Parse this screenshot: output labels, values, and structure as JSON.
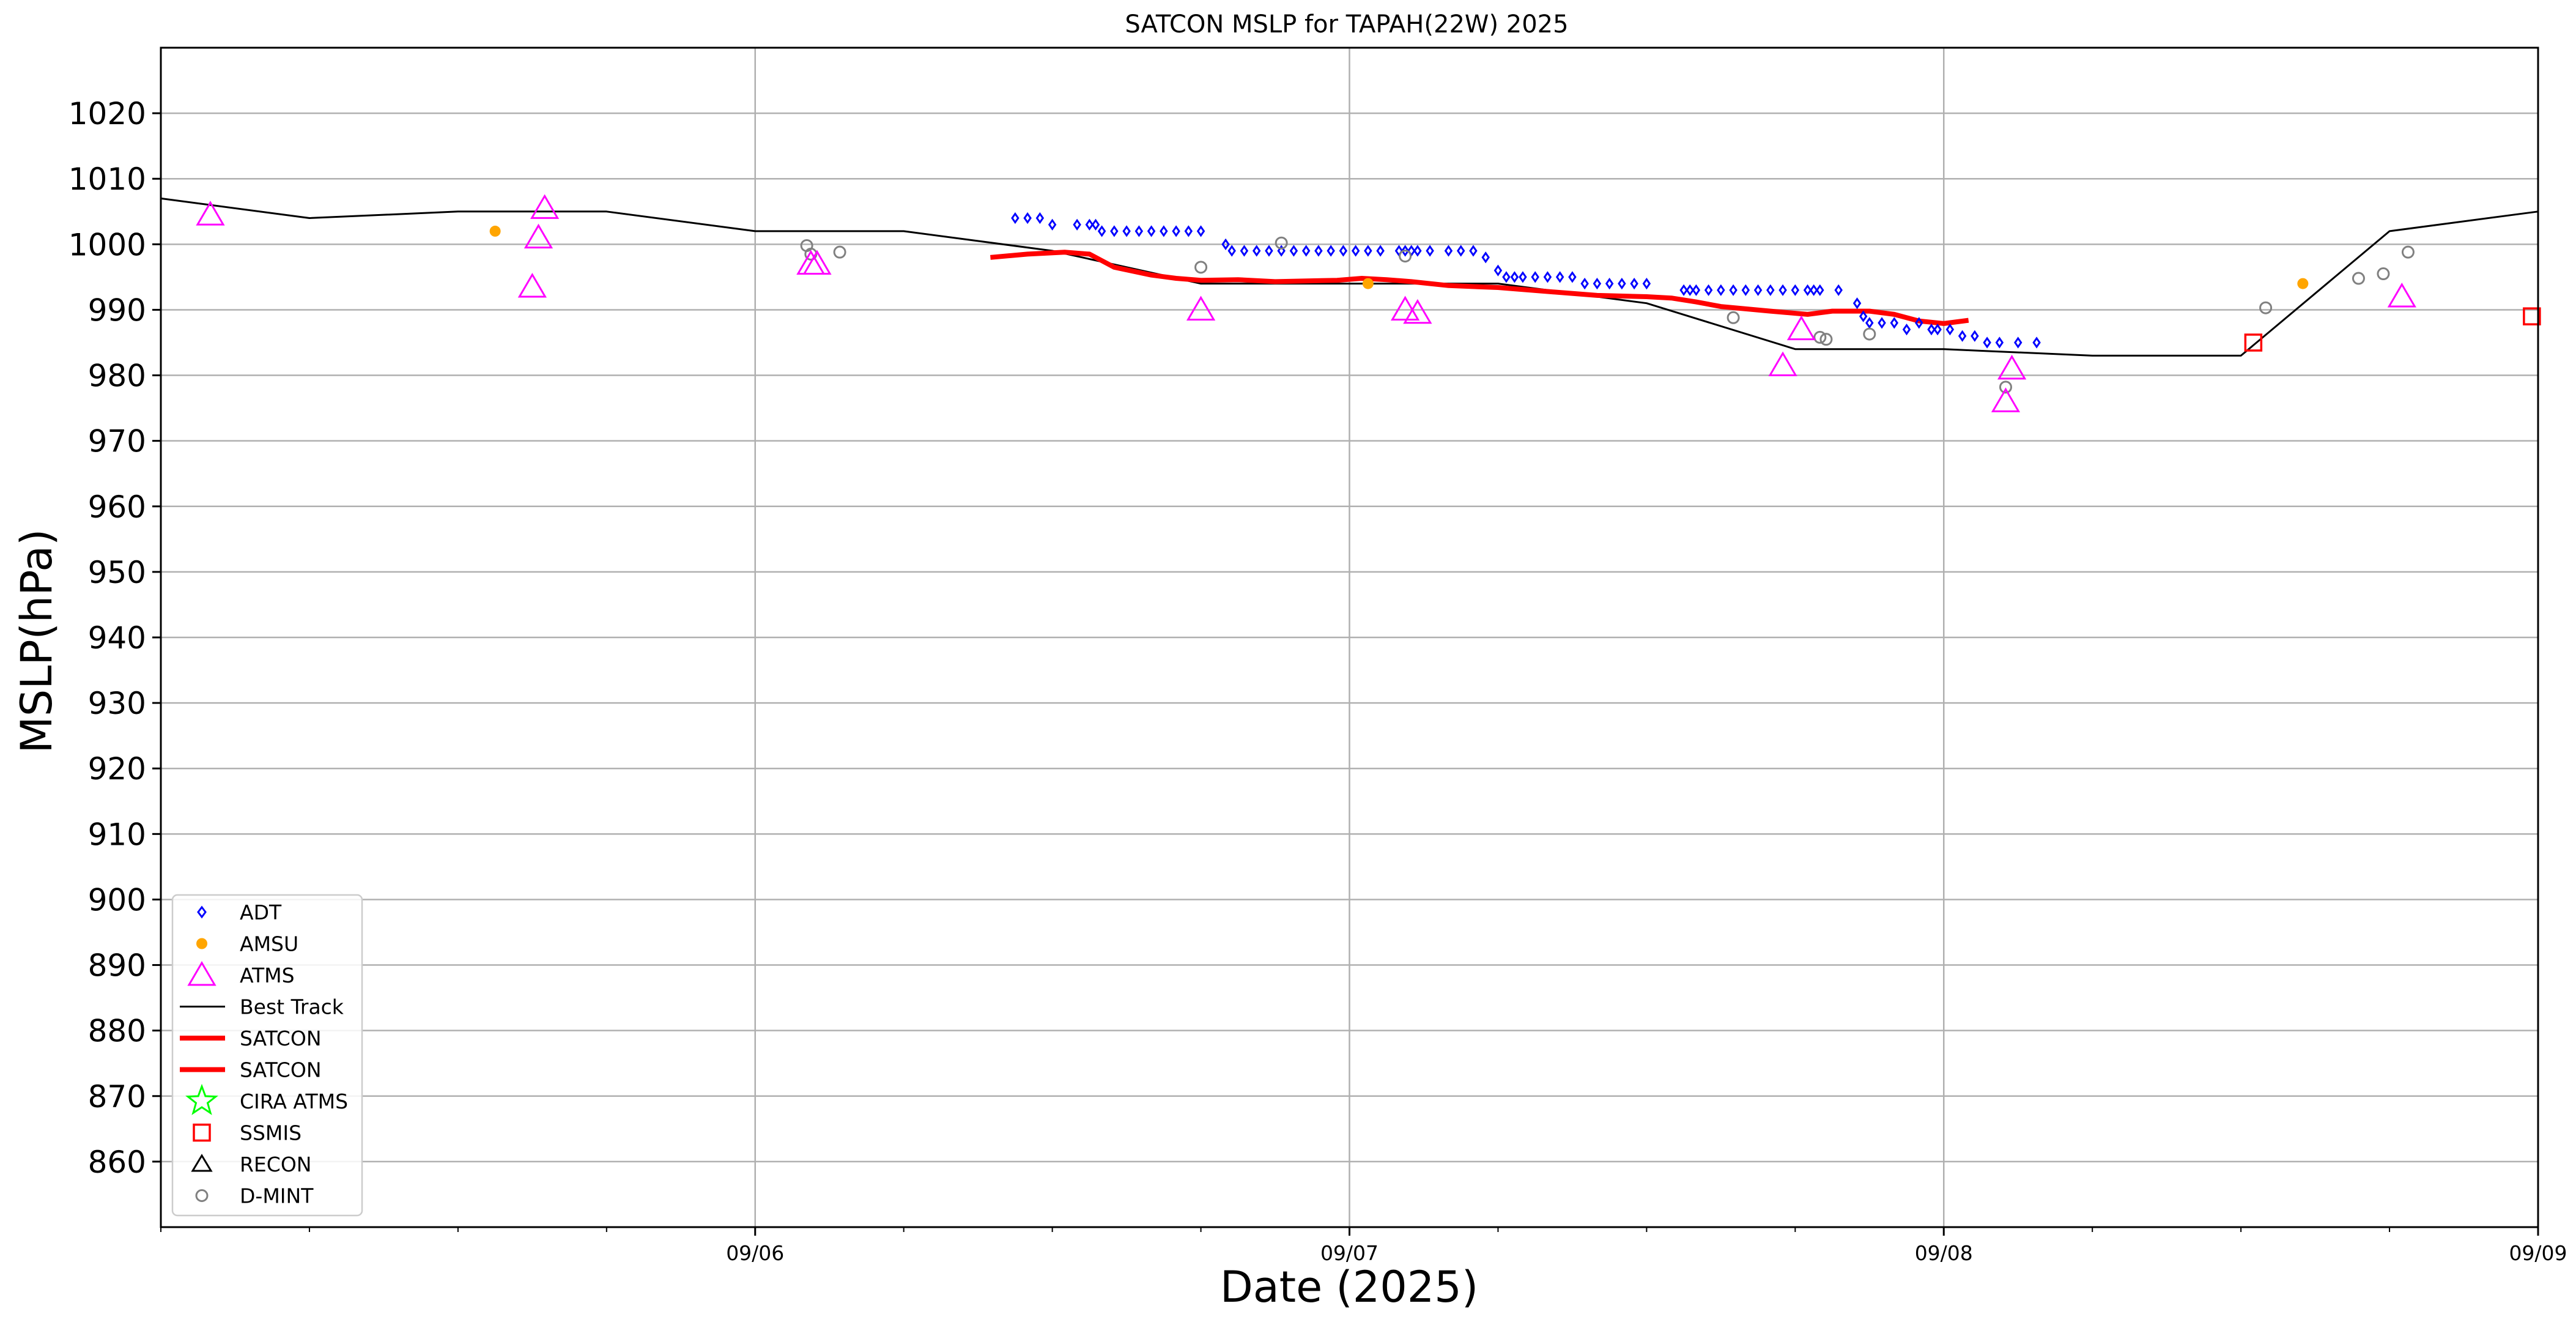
{
  "chart_data": {
    "type": "scatter",
    "title": "SATCON MSLP for TAPAH(22W) 2025",
    "xlabel": "Date (2025)",
    "ylabel": "MSLP(hPa)",
    "xlim": [
      "2025-09-05 00:00",
      "2025-09-09 00:00"
    ],
    "ylim": [
      850,
      1030
    ],
    "x_ticks": [
      {
        "x": "2025-09-06 00:00",
        "label": "09/06"
      },
      {
        "x": "2025-09-07 00:00",
        "label": "09/07"
      },
      {
        "x": "2025-09-08 00:00",
        "label": "09/08"
      },
      {
        "x": "2025-09-09 00:00",
        "label": "09/09"
      }
    ],
    "y_ticks": [
      860,
      870,
      880,
      890,
      900,
      910,
      920,
      930,
      940,
      950,
      960,
      970,
      980,
      990,
      1000,
      1010,
      1020
    ],
    "grid": true,
    "legend_position": "lower-left",
    "legend": [
      {
        "label": "ADT",
        "marker": "diamond",
        "color": "#0000ff"
      },
      {
        "label": "AMSU",
        "marker": "dot",
        "color": "#ffa500"
      },
      {
        "label": "ATMS",
        "marker": "triangle",
        "color": "#ff00ff"
      },
      {
        "label": "Best Track",
        "marker": "line-thin",
        "color": "#000000"
      },
      {
        "label": "SATCON",
        "marker": "line-thick",
        "color": "#ff0000"
      },
      {
        "label": "SATCON",
        "marker": "line-thick",
        "color": "#ff0000"
      },
      {
        "label": "CIRA ATMS",
        "marker": "star",
        "color": "#00ff00"
      },
      {
        "label": "SSMIS",
        "marker": "square",
        "color": "#ff0000"
      },
      {
        "label": "RECON",
        "marker": "triangle",
        "color": "#000000"
      },
      {
        "label": "D-MINT",
        "marker": "circle",
        "color": "#808080"
      }
    ],
    "series": [
      {
        "name": "Best Track",
        "kind": "line",
        "color": "#000000",
        "points": [
          [
            "2025-09-05 00:00",
            1007
          ],
          [
            "2025-09-05 06:00",
            1004
          ],
          [
            "2025-09-05 12:00",
            1005
          ],
          [
            "2025-09-05 18:00",
            1005
          ],
          [
            "2025-09-06 00:00",
            1002
          ],
          [
            "2025-09-06 06:00",
            1002
          ],
          [
            "2025-09-06 12:00",
            999
          ],
          [
            "2025-09-06 18:00",
            994
          ],
          [
            "2025-09-07 00:00",
            994
          ],
          [
            "2025-09-07 06:00",
            994
          ],
          [
            "2025-09-07 12:00",
            991
          ],
          [
            "2025-09-07 18:00",
            984
          ],
          [
            "2025-09-08 00:00",
            984
          ],
          [
            "2025-09-08 06:00",
            983
          ],
          [
            "2025-09-08 12:00",
            983
          ],
          [
            "2025-09-08 18:00",
            1002
          ],
          [
            "2025-09-09 00:00",
            1005
          ]
        ]
      },
      {
        "name": "SATCON",
        "kind": "line-thick",
        "color": "#ff0000",
        "points": [
          [
            "2025-09-06 09:30",
            998
          ],
          [
            "2025-09-06 11:00",
            998.5
          ],
          [
            "2025-09-06 12:30",
            998.8
          ],
          [
            "2025-09-06 13:30",
            998.5
          ],
          [
            "2025-09-06 14:00",
            997.5
          ],
          [
            "2025-09-06 14:30",
            996.5
          ],
          [
            "2025-09-06 16:00",
            995.3
          ],
          [
            "2025-09-06 17:00",
            994.8
          ],
          [
            "2025-09-06 18:00",
            994.5
          ],
          [
            "2025-09-06 19:30",
            994.6
          ],
          [
            "2025-09-06 21:00",
            994.3
          ],
          [
            "2025-09-06 23:30",
            994.5
          ],
          [
            "2025-09-07 00:30",
            994.8
          ],
          [
            "2025-09-07 01:30",
            994.6
          ],
          [
            "2025-09-07 02:30",
            994.3
          ],
          [
            "2025-09-07 04:00",
            993.7
          ],
          [
            "2025-09-07 06:00",
            993.4
          ],
          [
            "2025-09-07 08:00",
            992.8
          ],
          [
            "2025-09-07 10:00",
            992.2
          ],
          [
            "2025-09-07 12:00",
            992.0
          ],
          [
            "2025-09-07 13:00",
            991.8
          ],
          [
            "2025-09-07 14:00",
            991.2
          ],
          [
            "2025-09-07 15:00",
            990.5
          ],
          [
            "2025-09-07 17:00",
            989.8
          ],
          [
            "2025-09-07 18:30",
            989.3
          ],
          [
            "2025-09-07 19:30",
            989.8
          ],
          [
            "2025-09-07 21:00",
            989.8
          ],
          [
            "2025-09-07 22:00",
            989.3
          ],
          [
            "2025-09-07 23:00",
            988.3
          ],
          [
            "2025-09-08 00:00",
            987.9
          ],
          [
            "2025-09-08 01:00",
            988.4
          ]
        ]
      },
      {
        "name": "ADT",
        "kind": "diamond",
        "color": "#0000ff",
        "points": [
          [
            "2025-09-06 10:30",
            1004
          ],
          [
            "2025-09-06 11:00",
            1004
          ],
          [
            "2025-09-06 11:30",
            1004
          ],
          [
            "2025-09-06 12:00",
            1003
          ],
          [
            "2025-09-06 13:00",
            1003
          ],
          [
            "2025-09-06 13:30",
            1003
          ],
          [
            "2025-09-06 13:45",
            1003
          ],
          [
            "2025-09-06 14:00",
            1002
          ],
          [
            "2025-09-06 14:30",
            1002
          ],
          [
            "2025-09-06 15:00",
            1002
          ],
          [
            "2025-09-06 15:30",
            1002
          ],
          [
            "2025-09-06 16:00",
            1002
          ],
          [
            "2025-09-06 16:30",
            1002
          ],
          [
            "2025-09-06 17:00",
            1002
          ],
          [
            "2025-09-06 17:30",
            1002
          ],
          [
            "2025-09-06 18:00",
            1002
          ],
          [
            "2025-09-06 19:00",
            1000
          ],
          [
            "2025-09-06 19:15",
            999
          ],
          [
            "2025-09-06 19:45",
            999
          ],
          [
            "2025-09-06 20:15",
            999
          ],
          [
            "2025-09-06 20:45",
            999
          ],
          [
            "2025-09-06 21:15",
            999
          ],
          [
            "2025-09-06 21:45",
            999
          ],
          [
            "2025-09-06 22:15",
            999
          ],
          [
            "2025-09-06 22:45",
            999
          ],
          [
            "2025-09-06 23:15",
            999
          ],
          [
            "2025-09-06 23:45",
            999
          ],
          [
            "2025-09-07 00:15",
            999
          ],
          [
            "2025-09-07 00:45",
            999
          ],
          [
            "2025-09-07 01:15",
            999
          ],
          [
            "2025-09-07 02:00",
            999
          ],
          [
            "2025-09-07 02:15",
            999
          ],
          [
            "2025-09-07 02:30",
            999
          ],
          [
            "2025-09-07 02:45",
            999
          ],
          [
            "2025-09-07 03:15",
            999
          ],
          [
            "2025-09-07 04:00",
            999
          ],
          [
            "2025-09-07 04:30",
            999
          ],
          [
            "2025-09-07 05:00",
            999
          ],
          [
            "2025-09-07 05:30",
            998
          ],
          [
            "2025-09-07 06:00",
            996
          ],
          [
            "2025-09-07 06:20",
            995
          ],
          [
            "2025-09-07 06:40",
            995
          ],
          [
            "2025-09-07 07:00",
            995
          ],
          [
            "2025-09-07 07:30",
            995
          ],
          [
            "2025-09-07 08:00",
            995
          ],
          [
            "2025-09-07 08:30",
            995
          ],
          [
            "2025-09-07 09:00",
            995
          ],
          [
            "2025-09-07 09:30",
            994
          ],
          [
            "2025-09-07 10:00",
            994
          ],
          [
            "2025-09-07 10:30",
            994
          ],
          [
            "2025-09-07 11:00",
            994
          ],
          [
            "2025-09-07 11:30",
            994
          ],
          [
            "2025-09-07 12:00",
            994
          ],
          [
            "2025-09-07 13:30",
            993
          ],
          [
            "2025-09-07 13:45",
            993
          ],
          [
            "2025-09-07 14:00",
            993
          ],
          [
            "2025-09-07 14:30",
            993
          ],
          [
            "2025-09-07 15:00",
            993
          ],
          [
            "2025-09-07 15:30",
            993
          ],
          [
            "2025-09-07 16:00",
            993
          ],
          [
            "2025-09-07 16:30",
            993
          ],
          [
            "2025-09-07 17:00",
            993
          ],
          [
            "2025-09-07 17:30",
            993
          ],
          [
            "2025-09-07 18:00",
            993
          ],
          [
            "2025-09-07 18:30",
            993
          ],
          [
            "2025-09-07 18:45",
            993
          ],
          [
            "2025-09-07 19:00",
            993
          ],
          [
            "2025-09-07 19:45",
            993
          ],
          [
            "2025-09-07 20:30",
            991
          ],
          [
            "2025-09-07 20:45",
            989
          ],
          [
            "2025-09-07 21:00",
            988
          ],
          [
            "2025-09-07 21:30",
            988
          ],
          [
            "2025-09-07 22:00",
            988
          ],
          [
            "2025-09-07 22:30",
            987
          ],
          [
            "2025-09-07 23:00",
            988
          ],
          [
            "2025-09-07 23:30",
            987
          ],
          [
            "2025-09-07 23:45",
            987
          ],
          [
            "2025-09-08 00:15",
            987
          ],
          [
            "2025-09-08 00:45",
            986
          ],
          [
            "2025-09-08 01:15",
            986
          ],
          [
            "2025-09-08 01:45",
            985
          ],
          [
            "2025-09-08 02:15",
            985
          ],
          [
            "2025-09-08 03:00",
            985
          ],
          [
            "2025-09-08 03:45",
            985
          ]
        ]
      },
      {
        "name": "AMSU",
        "kind": "dot",
        "color": "#ffa500",
        "points": [
          [
            "2025-09-05 13:30",
            1002
          ],
          [
            "2025-09-07 00:45",
            994
          ],
          [
            "2025-09-08 14:30",
            994
          ]
        ]
      },
      {
        "name": "ATMS",
        "kind": "triangle",
        "color": "#ff00ff",
        "points": [
          [
            "2025-09-05 02:00",
            1004.5
          ],
          [
            "2025-09-05 15:15",
            1001
          ],
          [
            "2025-09-05 15:00",
            993.5
          ],
          [
            "2025-09-05 15:30",
            1005.5
          ],
          [
            "2025-09-06 02:15",
            997
          ],
          [
            "2025-09-06 02:30",
            997
          ],
          [
            "2025-09-06 18:00",
            990
          ],
          [
            "2025-09-07 02:15",
            990
          ],
          [
            "2025-09-07 02:45",
            989.5
          ],
          [
            "2025-09-07 17:30",
            981.5
          ],
          [
            "2025-09-07 18:15",
            987
          ],
          [
            "2025-09-08 02:30",
            976
          ],
          [
            "2025-09-08 02:45",
            981
          ],
          [
            "2025-09-08 18:30",
            992
          ]
        ]
      },
      {
        "name": "SSMIS",
        "kind": "square",
        "color": "#ff0000",
        "points": [
          [
            "2025-09-08 12:30",
            985
          ],
          [
            "2025-09-08 23:45",
            989
          ]
        ]
      },
      {
        "name": "D-MINT",
        "kind": "circle",
        "color": "#808080",
        "points": [
          [
            "2025-09-06 02:05",
            999.8
          ],
          [
            "2025-09-06 02:15",
            998.5
          ],
          [
            "2025-09-06 03:25",
            998.8
          ],
          [
            "2025-09-06 18:00",
            996.5
          ],
          [
            "2025-09-06 21:15",
            1000.2
          ],
          [
            "2025-09-07 02:15",
            998.2
          ],
          [
            "2025-09-07 15:30",
            988.8
          ],
          [
            "2025-09-07 19:00",
            985.8
          ],
          [
            "2025-09-07 19:15",
            985.5
          ],
          [
            "2025-09-07 21:00",
            986.3
          ],
          [
            "2025-09-08 02:30",
            978.2
          ],
          [
            "2025-09-08 13:00",
            990.3
          ],
          [
            "2025-09-08 16:45",
            994.8
          ],
          [
            "2025-09-08 17:45",
            995.5
          ],
          [
            "2025-09-08 18:45",
            998.8
          ]
        ]
      }
    ]
  }
}
